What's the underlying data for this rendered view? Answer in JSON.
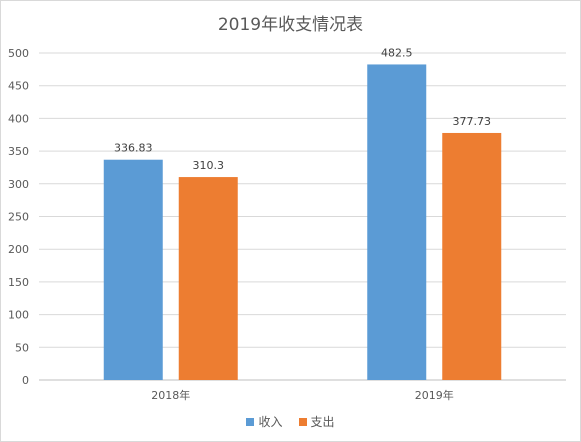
{
  "chart_data": {
    "type": "bar",
    "title": "2019年收支情况表",
    "categories": [
      "2018年",
      "2019年"
    ],
    "series": [
      {
        "name": "收入",
        "values": [
          336.83,
          482.5
        ],
        "labels": [
          "336.83",
          "482.5"
        ],
        "color": "#5b9bd5"
      },
      {
        "name": "支出",
        "values": [
          310.3,
          377.73
        ],
        "labels": [
          "310.3",
          "377.73"
        ],
        "color": "#ed7d31"
      }
    ],
    "ylim": [
      0,
      500
    ],
    "yticks": [
      0,
      50,
      100,
      150,
      200,
      250,
      300,
      350,
      400,
      450,
      500
    ],
    "ytick_labels": [
      "0",
      "50",
      "100",
      "150",
      "200",
      "250",
      "300",
      "350",
      "400",
      "450",
      "500"
    ],
    "grid": true,
    "legend_position": "bottom"
  }
}
